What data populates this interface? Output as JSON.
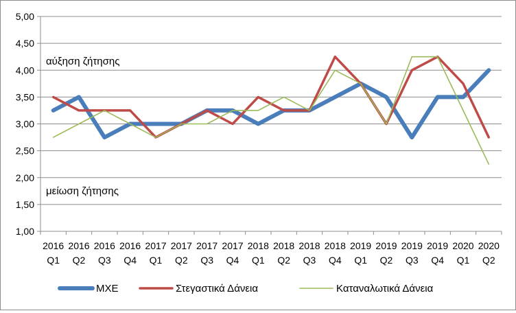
{
  "chart_data": {
    "type": "line",
    "title": "",
    "xlabel": "",
    "ylabel": "",
    "ylim": [
      1.0,
      5.0
    ],
    "yticks": [
      "5,00",
      "4,50",
      "4,00",
      "3,50",
      "3,00",
      "2,50",
      "2,00",
      "1,50",
      "1,00"
    ],
    "ytick_values": [
      5.0,
      4.5,
      4.0,
      3.5,
      3.0,
      2.5,
      2.0,
      1.5,
      1.0
    ],
    "grid": true,
    "legend_position": "bottom",
    "categories": [
      {
        "year": "2016",
        "quarter": "Q1"
      },
      {
        "year": "2016",
        "quarter": "Q2"
      },
      {
        "year": "2016",
        "quarter": "Q3"
      },
      {
        "year": "2016",
        "quarter": "Q4"
      },
      {
        "year": "2017",
        "quarter": "Q1"
      },
      {
        "year": "2017",
        "quarter": "Q2"
      },
      {
        "year": "2017",
        "quarter": "Q3"
      },
      {
        "year": "2017",
        "quarter": "Q4"
      },
      {
        "year": "2018",
        "quarter": "Q1"
      },
      {
        "year": "2018",
        "quarter": "Q2"
      },
      {
        "year": "2018",
        "quarter": "Q3"
      },
      {
        "year": "2018",
        "quarter": "Q4"
      },
      {
        "year": "2019",
        "quarter": "Q1"
      },
      {
        "year": "2019",
        "quarter": "Q2"
      },
      {
        "year": "2019",
        "quarter": "Q3"
      },
      {
        "year": "2019",
        "quarter": "Q4"
      },
      {
        "year": "2020",
        "quarter": "Q1"
      },
      {
        "year": "2020",
        "quarter": "Q2"
      }
    ],
    "annotations": {
      "increase": "αύξηση ζήτησης",
      "decrease": "μείωση ζήτησης"
    },
    "series": [
      {
        "name": "ΜΧΕ",
        "color": "#4a7ebb",
        "values": [
          3.25,
          3.5,
          2.75,
          3.0,
          3.0,
          3.0,
          3.25,
          3.25,
          3.0,
          3.25,
          3.25,
          3.5,
          3.75,
          3.5,
          2.75,
          3.5,
          3.5,
          4.0
        ]
      },
      {
        "name": "Στεγαστικά Δάνεια",
        "color": "#be4b48",
        "values": [
          3.5,
          3.25,
          3.25,
          3.25,
          2.75,
          3.0,
          3.25,
          3.0,
          3.5,
          3.25,
          3.25,
          4.25,
          3.75,
          3.0,
          4.0,
          4.25,
          3.75,
          2.75
        ]
      },
      {
        "name": "Καταναλωτικά Δάνεια",
        "color": "#9bbb59",
        "values": [
          2.75,
          3.0,
          3.25,
          3.0,
          2.75,
          3.0,
          3.0,
          3.25,
          3.25,
          3.5,
          3.25,
          4.0,
          3.75,
          3.0,
          4.25,
          4.25,
          3.25,
          2.25
        ]
      }
    ]
  }
}
